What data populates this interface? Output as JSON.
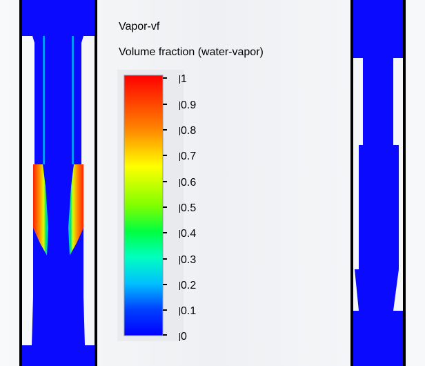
{
  "legend": {
    "title": "Vapor-vf",
    "subtitle": "Volume fraction (water-vapor)",
    "ticks": [
      "1",
      "0.9",
      "0.8",
      "0.7",
      "0.6",
      "0.5",
      "0.4",
      "0.3",
      "0.2",
      "0.1",
      "0"
    ]
  },
  "colors": {
    "blue": "#0a0aff",
    "background": "#f3f4f6",
    "wall": "#000000"
  }
}
